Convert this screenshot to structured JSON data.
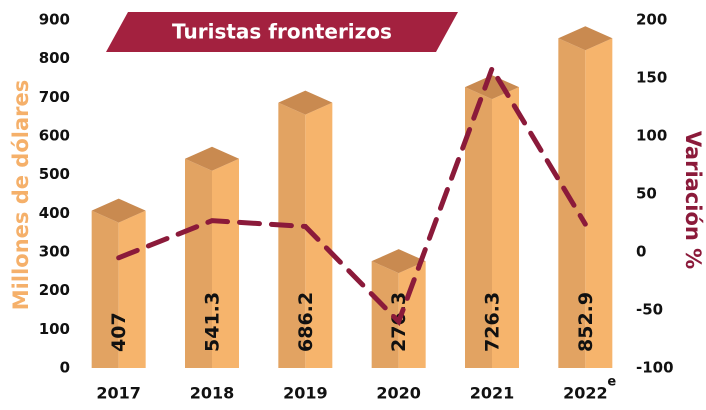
{
  "chart_data": {
    "type": "bar",
    "title": "Turistas fronterizos",
    "categories": [
      "2017",
      "2018",
      "2019",
      "2020",
      "2021",
      "2022"
    ],
    "category_note": "e",
    "y_label": "Millones de dólares",
    "y2_label": "Variación %",
    "ylim": [
      0,
      900
    ],
    "yticks": [
      0,
      100,
      200,
      300,
      400,
      500,
      600,
      700,
      800,
      900
    ],
    "y2lim": [
      -100,
      200
    ],
    "y2ticks": [
      -100,
      -50,
      0,
      50,
      100,
      150,
      200
    ],
    "series": [
      {
        "name": "Millones de dólares",
        "type": "bar",
        "color": "#f6b46c",
        "values": [
          407,
          541.3,
          686.2,
          276.3,
          726.3,
          852.9
        ]
      },
      {
        "name": "Variación %",
        "type": "line",
        "axis": "y2",
        "color": "#8b1a3a",
        "values": [
          -5,
          27,
          22,
          -60,
          158,
          24
        ]
      }
    ]
  }
}
